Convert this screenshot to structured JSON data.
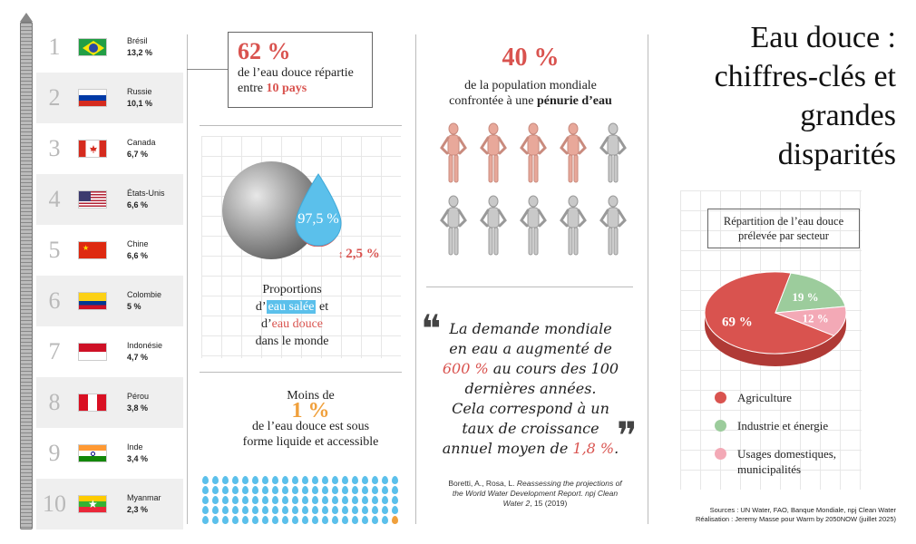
{
  "title": "Eau douce : chiffres-clés et grandes disparités",
  "title_lines": [
    "Eau douce :",
    "chiffres-clés et",
    "grandes",
    "disparités"
  ],
  "countries": [
    {
      "rank": "1",
      "name": "Brésil",
      "pct": "13,2 %",
      "flag": "brazil-flag-icon"
    },
    {
      "rank": "2",
      "name": "Russie",
      "pct": "10,1 %",
      "flag": "russia-flag-icon"
    },
    {
      "rank": "3",
      "name": "Canada",
      "pct": "6,7 %",
      "flag": "canada-flag-icon"
    },
    {
      "rank": "4",
      "name": "États-Unis",
      "pct": "6,6 %",
      "flag": "usa-flag-icon"
    },
    {
      "rank": "5",
      "name": "Chine",
      "pct": "6,6 %",
      "flag": "china-flag-icon"
    },
    {
      "rank": "6",
      "name": "Colombie",
      "pct": "5 %",
      "flag": "colombia-flag-icon"
    },
    {
      "rank": "7",
      "name": "Indonésie",
      "pct": "4,7 %",
      "flag": "indonesia-flag-icon"
    },
    {
      "rank": "8",
      "name": "Pérou",
      "pct": "3,8 %",
      "flag": "peru-flag-icon"
    },
    {
      "rank": "9",
      "name": "Inde",
      "pct": "3,4 %",
      "flag": "india-flag-icon"
    },
    {
      "rank": "10",
      "name": "Myanmar",
      "pct": "2,3 %",
      "flag": "myanmar-flag-icon"
    }
  ],
  "stat62": {
    "value": "62 %",
    "text1": "de l’eau douce répartie",
    "text2": "entre ",
    "highlight": "10 pays"
  },
  "proportions": {
    "salt_pct": "97,5 %",
    "fresh_pct": "2,5 %",
    "line1": "Proportions",
    "line2a": "d’",
    "salt_label": "eau salée",
    "line2b": " et",
    "line3a": "d’",
    "fresh_label": "eau douce",
    "line4": "dans le monde"
  },
  "moins": {
    "line1": "Moins de",
    "value": "1 %",
    "line2": "de l’eau douce est sous",
    "line3": "forme liquide et accessible"
  },
  "stat40": {
    "value": "40 %",
    "text1": "de la population mondiale",
    "text2": "confrontée à une ",
    "highlight": "pénurie d’eau"
  },
  "quote": {
    "l1": "La demande mondiale",
    "l2": "en eau a augmenté de",
    "l3_red": "600 %",
    "l3": " au cours des 100",
    "l4": "dernières années.",
    "l5": "Cela correspond à un",
    "l6": "taux de croissance",
    "l7": "annuel moyen de ",
    "l7_red": "1,8 %",
    "l7_end": "."
  },
  "citation": {
    "authors": "Boretti, A., Rosa, L. ",
    "title": "Reassessing the projections of the World Water Development Report. npj Clean Water 2",
    "end": ", 15 (2019)"
  },
  "pie_title_l1": "Répartition de l’eau douce",
  "pie_title_l2": "prélevée par secteur",
  "chart_data": {
    "type": "pie",
    "title": "Répartition de l’eau douce prélevée par secteur",
    "categories": [
      "Agriculture",
      "Industrie et énergie",
      "Usages domestiques, municipalités"
    ],
    "values": [
      69,
      19,
      12
    ],
    "labels": [
      "69 %",
      "19 %",
      "12 %"
    ],
    "colors": [
      "#d9534f",
      "#9ccc9c",
      "#f3a9b6"
    ]
  },
  "legend": [
    {
      "label": "Agriculture",
      "color": "#d9534f"
    },
    {
      "label": "Industrie et énergie",
      "color": "#9ccc9c"
    },
    {
      "label": "Usages domestiques, municipalités",
      "color": "#f3a9b6"
    }
  ],
  "sources": {
    "line1": "Sources : UN Water, FAO, Banque Mondiale, npj Clean Water",
    "line2": "Réalisation : Jeremy Masse pour Warm by 2050NOW (juillet 2025)"
  }
}
